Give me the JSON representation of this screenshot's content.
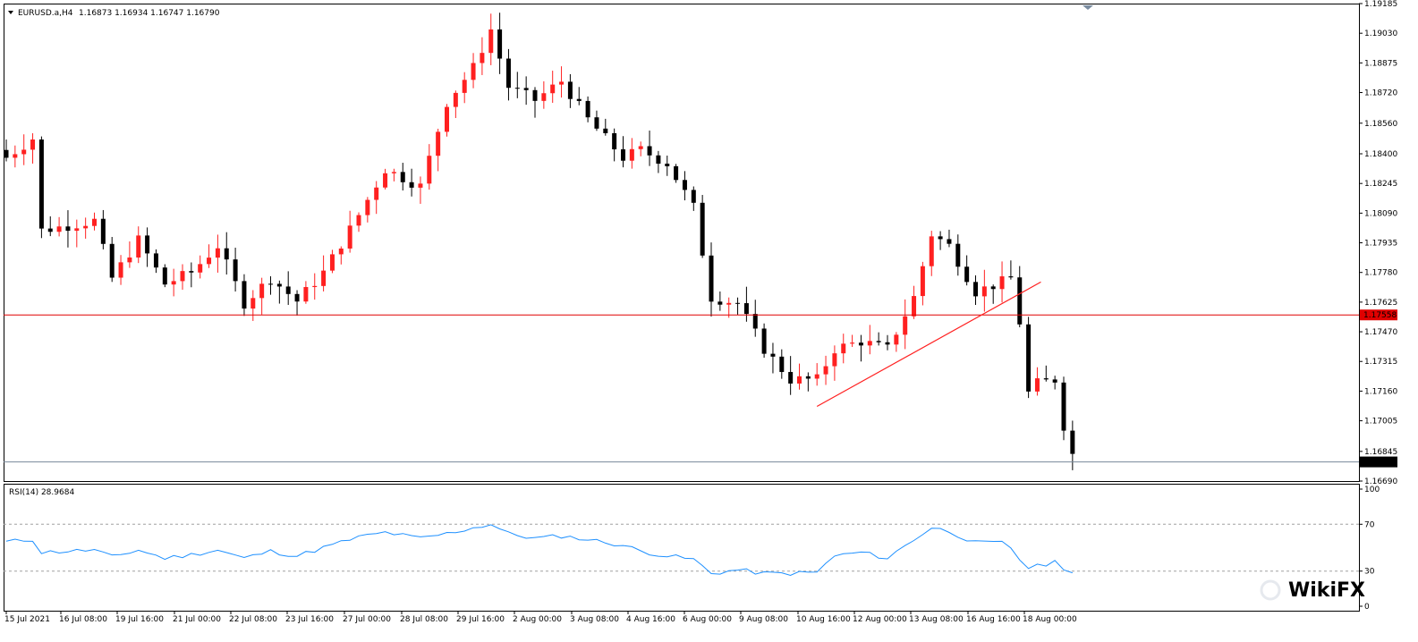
{
  "header": {
    "symbol": "EURUSD.a,H4",
    "ohlc": "1.16873 1.16934 1.16747 1.16790"
  },
  "rsi": {
    "label": "RSI(14) 28.9684",
    "ylim": [
      0,
      100
    ],
    "levels": [
      70,
      30
    ],
    "ticks": [
      "100",
      "70",
      "30",
      "0"
    ],
    "color": "#1e90ff"
  },
  "colors": {
    "bull": "#ff2020",
    "bear": "#000000",
    "level_line": "#e00000",
    "trend_line": "#ff2020",
    "current_line": "#778899",
    "price_tag_bg": "#e00000",
    "current_tag_bg": "#000000"
  },
  "watermark": "WikiFX",
  "chart_data": [
    {
      "type": "candlestick",
      "ylim": [
        1.1669,
        1.19185
      ],
      "y_ticks": [
        "1.19185",
        "1.19030",
        "1.18875",
        "1.18720",
        "1.18560",
        "1.18400",
        "1.18245",
        "1.18090",
        "1.17935",
        "1.17780",
        "1.17625",
        "1.17470",
        "1.17315",
        "1.17160",
        "1.17005",
        "1.16845",
        "1.16690"
      ],
      "x_ticks": [
        "15 Jul 2021",
        "16 Jul 08:00",
        "19 Jul 16:00",
        "21 Jul 00:00",
        "22 Jul 08:00",
        "23 Jul 16:00",
        "27 Jul 00:00",
        "28 Jul 08:00",
        "29 Jul 16:00",
        "2 Aug 00:00",
        "3 Aug 08:00",
        "4 Aug 16:00",
        "6 Aug 00:00",
        "9 Aug 08:00",
        "10 Aug 16:00",
        "12 Aug 00:00",
        "13 Aug 08:00",
        "16 Aug 16:00",
        "18 Aug 00:00"
      ],
      "horizontal_level": {
        "price": 1.17558,
        "label": "1.17558"
      },
      "current_price": {
        "price": 1.1679,
        "label": "1.16790"
      },
      "trendline": {
        "from": [
          92,
          1.1708
        ],
        "to": [
          117,
          1.1773
        ]
      },
      "close_path": [
        [
          0,
          1.1838
        ],
        [
          3,
          1.1848
        ],
        [
          4,
          1.18
        ],
        [
          10,
          1.1805
        ],
        [
          12,
          1.1775
        ],
        [
          15,
          1.1795
        ],
        [
          18,
          1.1772
        ],
        [
          21,
          1.1778
        ],
        [
          24,
          1.1792
        ],
        [
          27,
          1.1762
        ],
        [
          30,
          1.1775
        ],
        [
          33,
          1.1763
        ],
        [
          36,
          1.1778
        ],
        [
          40,
          1.1808
        ],
        [
          43,
          1.1832
        ],
        [
          47,
          1.1823
        ],
        [
          50,
          1.1867
        ],
        [
          53,
          1.1885
        ],
        [
          55,
          1.1905
        ],
        [
          57,
          1.1875
        ],
        [
          60,
          1.1868
        ],
        [
          63,
          1.1878
        ],
        [
          66,
          1.1858
        ],
        [
          70,
          1.1838
        ],
        [
          72,
          1.1842
        ],
        [
          75,
          1.1835
        ],
        [
          78,
          1.1812
        ],
        [
          80,
          1.1765
        ],
        [
          83,
          1.1762
        ],
        [
          86,
          1.1738
        ],
        [
          89,
          1.1722
        ],
        [
          92,
          1.1722
        ],
        [
          94,
          1.1738
        ],
        [
          97,
          1.1742
        ],
        [
          100,
          1.1738
        ],
        [
          103,
          1.1765
        ],
        [
          105,
          1.1798
        ],
        [
          107,
          1.1792
        ],
        [
          110,
          1.1768
        ],
        [
          113,
          1.1773
        ],
        [
          114,
          1.1775
        ],
        [
          115,
          1.1752
        ],
        [
          116,
          1.1715
        ],
        [
          117,
          1.172
        ],
        [
          119,
          1.1722
        ],
        [
          120,
          1.1698
        ],
        [
          121,
          1.1683
        ]
      ],
      "rsi_path": [
        [
          0,
          55
        ],
        [
          3,
          57
        ],
        [
          4,
          46
        ],
        [
          10,
          48
        ],
        [
          12,
          42
        ],
        [
          15,
          48
        ],
        [
          18,
          41
        ],
        [
          21,
          44
        ],
        [
          24,
          48
        ],
        [
          27,
          41
        ],
        [
          30,
          47
        ],
        [
          33,
          43
        ],
        [
          36,
          50
        ],
        [
          40,
          59
        ],
        [
          43,
          63
        ],
        [
          47,
          58
        ],
        [
          50,
          62
        ],
        [
          53,
          67
        ],
        [
          55,
          70
        ],
        [
          57,
          62
        ],
        [
          60,
          58
        ],
        [
          63,
          60
        ],
        [
          66,
          57
        ],
        [
          70,
          52
        ],
        [
          72,
          47
        ],
        [
          75,
          43
        ],
        [
          78,
          40
        ],
        [
          80,
          28
        ],
        [
          83,
          31
        ],
        [
          86,
          28
        ],
        [
          89,
          28
        ],
        [
          92,
          29
        ],
        [
          94,
          43
        ],
        [
          97,
          46
        ],
        [
          100,
          41
        ],
        [
          103,
          57
        ],
        [
          105,
          67
        ],
        [
          107,
          64
        ],
        [
          110,
          54
        ],
        [
          113,
          54
        ],
        [
          114,
          50
        ],
        [
          115,
          40
        ],
        [
          116,
          33
        ],
        [
          117,
          34
        ],
        [
          119,
          38
        ],
        [
          120,
          33
        ],
        [
          121,
          29
        ]
      ]
    }
  ]
}
